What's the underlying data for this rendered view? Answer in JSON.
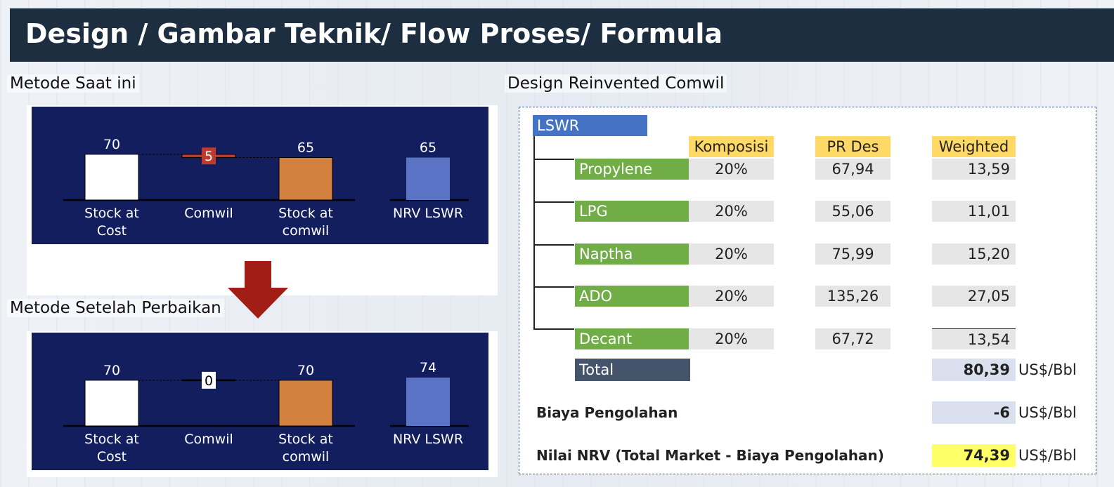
{
  "header": {
    "title": "Design / Gambar Teknik/ Flow Proses/ Formula"
  },
  "sections": {
    "current_method": "Metode Saat ini",
    "improved_method": "Metode Setelah Perbaikan",
    "design": "Design Reinvented Comwil"
  },
  "colors": {
    "title_bg": "#1c2e3f",
    "chart_bg": "#131e5e",
    "stock_cost": "#ffffff",
    "comwil_bar": "#c0392b",
    "stock_comwil": "#d3813f",
    "nrv_bar": "#5b73c4",
    "arrow": "#a31d17"
  },
  "chart_data": [
    {
      "type": "bar",
      "categories": [
        "Stock at Cost",
        "Comwil",
        "Stock at comwil",
        "NRV LSWR"
      ],
      "values": [
        70,
        5,
        65,
        65
      ],
      "data_labels": [
        "70",
        "5",
        "65",
        "65"
      ]
    },
    {
      "type": "bar",
      "categories": [
        "Stock at Cost",
        "Comwil",
        "Stock at comwil",
        "NRV LSWR"
      ],
      "values": [
        70,
        0,
        70,
        74
      ],
      "data_labels": [
        "70",
        "0",
        "70",
        "74"
      ]
    }
  ],
  "table": {
    "root": "LSWR",
    "headers": [
      "Komposisi",
      "PR Des",
      "Weighted"
    ],
    "rows": [
      {
        "name": "Propylene",
        "komposisi": "20%",
        "pr_des": "67,94",
        "weighted": "13,59"
      },
      {
        "name": "LPG",
        "komposisi": "20%",
        "pr_des": "55,06",
        "weighted": "11,01"
      },
      {
        "name": "Naptha",
        "komposisi": "20%",
        "pr_des": "75,99",
        "weighted": "15,20"
      },
      {
        "name": "ADO",
        "komposisi": "20%",
        "pr_des": "135,26",
        "weighted": "27,05"
      },
      {
        "name": "Decant",
        "komposisi": "20%",
        "pr_des": "67,72",
        "weighted": "13,54"
      }
    ],
    "total_label": "Total",
    "total_value": "80,39",
    "unit": "US$/Bbl",
    "biaya_label": "Biaya Pengolahan",
    "biaya_value": "-6",
    "nrv_label": "Nilai NRV (Total Market - Biaya Pengolahan)",
    "nrv_value": "74,39"
  }
}
